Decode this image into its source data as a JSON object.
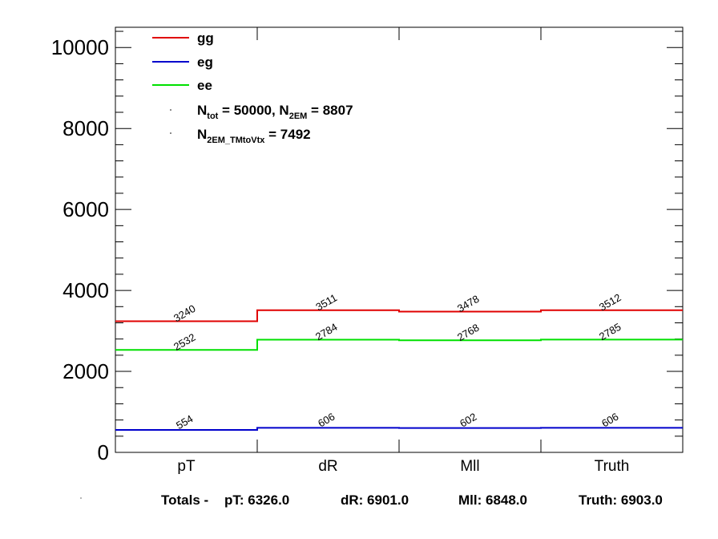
{
  "chart_data": {
    "type": "line",
    "categories": [
      "pT",
      "dR",
      "Mll",
      "Truth"
    ],
    "series": [
      {
        "name": "gg",
        "color": "#e00000",
        "values": [
          3240,
          3511,
          3478,
          3512
        ]
      },
      {
        "name": "eg",
        "color": "#0000cc",
        "values": [
          554,
          606,
          602,
          606
        ]
      },
      {
        "name": "ee",
        "color": "#00e000",
        "values": [
          2532,
          2784,
          2768,
          2785
        ]
      }
    ],
    "ylim": [
      0,
      10500
    ],
    "yticks": [
      "0",
      "2000",
      "4000",
      "6000",
      "8000",
      "10000"
    ],
    "ytick_values": [
      0,
      2000,
      4000,
      6000,
      8000,
      10000
    ],
    "grid": false,
    "legend_position": "top-left",
    "annotations": {
      "ntot_main": "N",
      "ntot_sub": "tot",
      "ntot_value": " = 50000, N",
      "n2em_sub": "2EM",
      "n2em_value": " = 8807",
      "n2em_vtx_main": "N",
      "n2em_vtx_sub": "2EM_TMtoVtx",
      "n2em_vtx_value": " = 7492"
    },
    "totals": {
      "prefix": "Totals -",
      "items": [
        {
          "label": "pT: 6326.0"
        },
        {
          "label": "dR: 6901.0"
        },
        {
          "label": "Mll: 6848.0"
        },
        {
          "label": "Truth: 6903.0"
        }
      ]
    }
  }
}
